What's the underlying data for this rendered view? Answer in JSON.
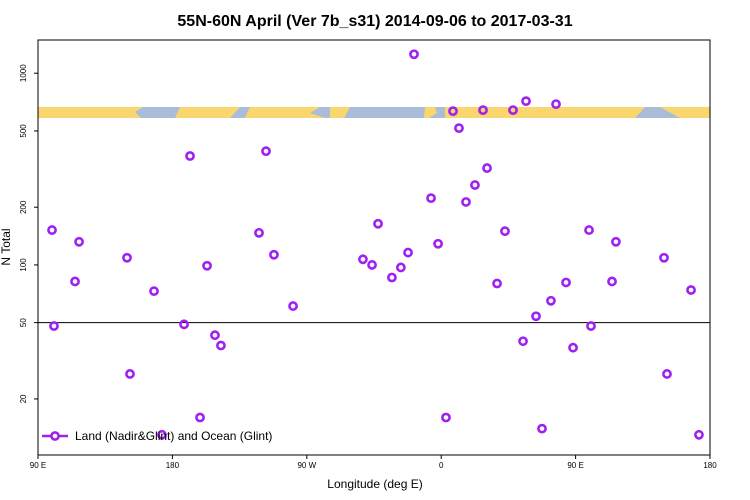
{
  "chart_data": {
    "type": "scatter",
    "title": "55N-60N April (Ver 7b_s31)   2014-09-06 to 2017-03-31",
    "x_label": "Longitude (deg E)",
    "y_label": "N Total",
    "log_y": true,
    "color": "#a020f0",
    "xlim": [
      90,
      540
    ],
    "ylim": [
      10.2,
      1490
    ],
    "xticks": [
      {
        "value": 90,
        "label": "90 E"
      },
      180,
      {
        "value": 270,
        "label": "90 W"
      },
      {
        "value": 360,
        "label": "0"
      },
      {
        "value": 450,
        "label": "90 E"
      },
      {
        "value": 540,
        "label": "180"
      }
    ],
    "yticks": [
      20,
      50,
      100,
      200,
      500,
      1000
    ],
    "hline": 50,
    "series": [
      {
        "name": "Land (Nadir&Glint) and Ocean (Glint)",
        "color": "#a020f0",
        "x": [
          99.4,
          100.7,
          117.5,
          114.8,
          149.6,
          151.6,
          167.7,
          173,
          187.8,
          191.8,
          198.5,
          203.2,
          208.5,
          212.5,
          238,
          242.7,
          248,
          260.8,
          307.6,
          313.7,
          317.7,
          327,
          333,
          337.8,
          341.8,
          353.2,
          357.9,
          363.2,
          367.9,
          371.9,
          376.6,
          382.6,
          390.7,
          388,
          397.4,
          402.7,
          408.1,
          416.8,
          414.8,
          423.5,
          427.5,
          433.5,
          436.9,
          443.6,
          448.3,
          459,
          460.3,
          477,
          474.4,
          509.2,
          511.2,
          527.3,
          532.6
        ],
        "values": [
          152,
          48,
          132,
          82,
          109,
          27,
          73,
          13,
          49,
          370,
          16,
          99,
          43,
          38,
          147,
          392,
          113,
          61,
          107,
          100,
          164,
          86,
          97,
          116,
          1256,
          223,
          129,
          16,
          634,
          517,
          213,
          261,
          320,
          642,
          80,
          150,
          642,
          715,
          40,
          54,
          14,
          65,
          690,
          81,
          37,
          152,
          48,
          132,
          82,
          109,
          27,
          74,
          13
        ]
      }
    ]
  }
}
